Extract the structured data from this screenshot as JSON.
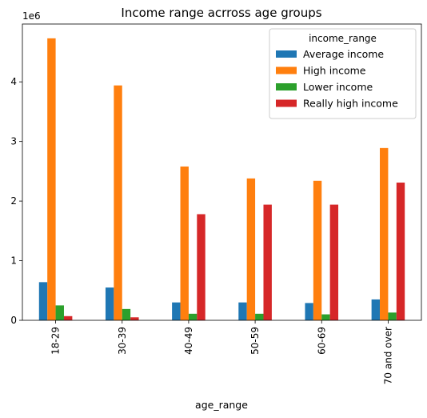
{
  "chart_data": {
    "type": "bar",
    "title": "Income range acrross age groups",
    "xlabel": "age_range",
    "ylabel": "",
    "y_offset_label": "1e6",
    "categories": [
      "18-29",
      "30-39",
      "40-49",
      "50-59",
      "60-69",
      "70 and over"
    ],
    "y_ticks": [
      "0",
      "1",
      "2",
      "3",
      "4"
    ],
    "ylim": [
      0,
      4.97
    ],
    "grid": false,
    "legend": {
      "title": "income_range",
      "placement": "top-right"
    },
    "series": [
      {
        "name": "Average income",
        "color": "#1f77b4",
        "values": [
          0.64,
          0.55,
          0.3,
          0.3,
          0.29,
          0.35
        ]
      },
      {
        "name": "High income",
        "color": "#ff7f0e",
        "values": [
          4.73,
          3.94,
          2.58,
          2.38,
          2.34,
          2.89
        ]
      },
      {
        "name": "Lower income",
        "color": "#2ca02c",
        "values": [
          0.25,
          0.19,
          0.11,
          0.11,
          0.1,
          0.13
        ]
      },
      {
        "name": "Really high income",
        "color": "#d62728",
        "values": [
          0.07,
          0.05,
          1.78,
          1.94,
          1.94,
          2.31
        ]
      }
    ]
  }
}
